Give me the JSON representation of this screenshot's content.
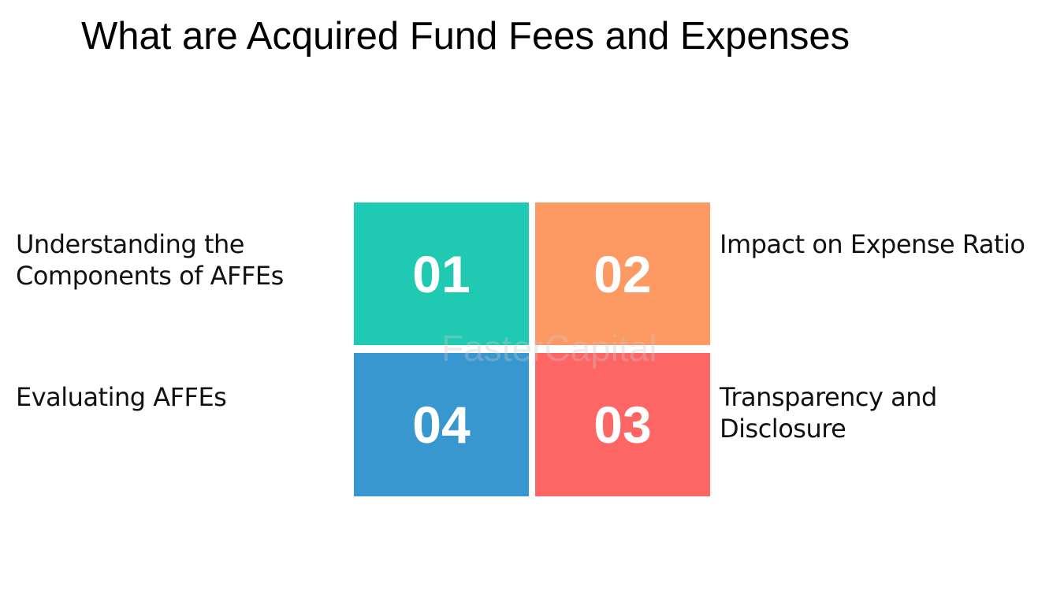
{
  "title": "What are Acquired Fund Fees and Expenses",
  "watermark": "FasterCapital",
  "items": [
    {
      "number": "01",
      "color": "#20c9b1",
      "label": [
        "Understanding the",
        "Components of AFFEs"
      ]
    },
    {
      "number": "02",
      "color": "#fd9a64",
      "label": [
        "Impact on Expense Ratio"
      ]
    },
    {
      "number": "03",
      "color": "#fe6565",
      "label": [
        "Transparency and",
        "Disclosure"
      ]
    },
    {
      "number": "04",
      "color": "#3797ce",
      "label": [
        "Evaluating AFFEs"
      ]
    }
  ]
}
